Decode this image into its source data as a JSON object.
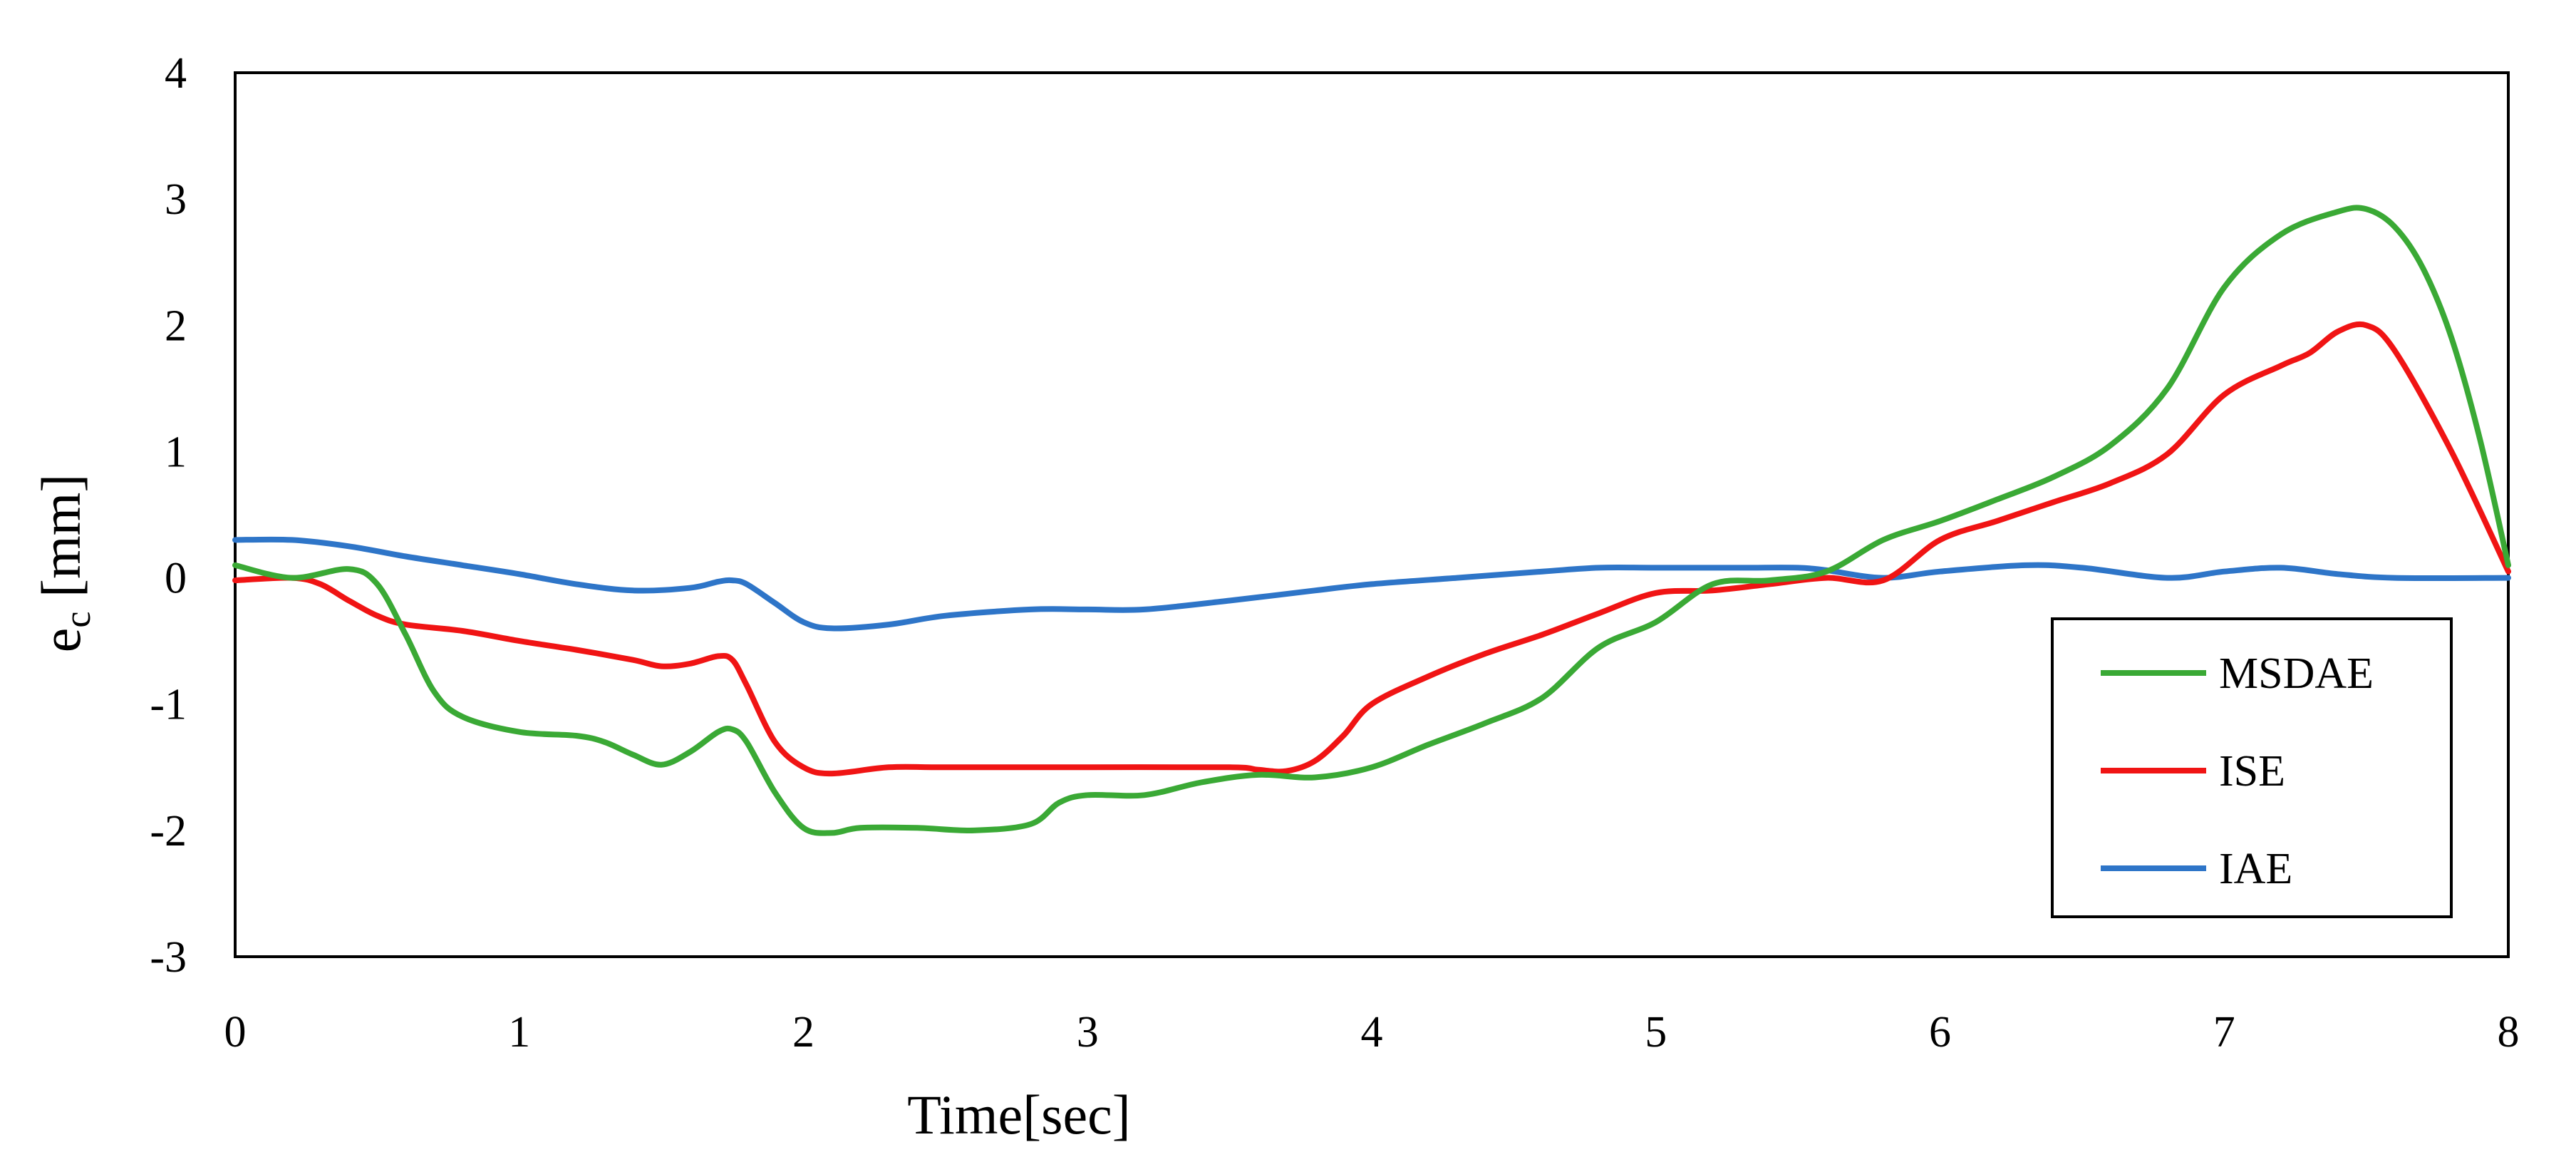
{
  "chart_data": {
    "type": "line",
    "xlabel": "Time[sec]",
    "ylabel_main": "e",
    "ylabel_sub": "c",
    "ylabel_unit": " [mm]",
    "xlim": [
      0,
      8
    ],
    "ylim": [
      -3,
      4
    ],
    "x_ticks": [
      "0",
      "1",
      "2",
      "3",
      "4",
      "5",
      "6",
      "7",
      "8"
    ],
    "y_ticks": [
      "4",
      "3",
      "2",
      "1",
      "0",
      "-1",
      "-2",
      "-3"
    ],
    "grid": false,
    "legend_position": "bottom-right",
    "series": [
      {
        "name": "MSDAE",
        "color": "#3aa935",
        "x": [
          0,
          0.2,
          0.4,
          0.5,
          0.6,
          0.7,
          0.8,
          1.0,
          1.2,
          1.3,
          1.4,
          1.5,
          1.6,
          1.7,
          1.75,
          1.8,
          1.9,
          2.0,
          2.1,
          2.2,
          2.4,
          2.6,
          2.8,
          2.9,
          3.0,
          3.2,
          3.4,
          3.6,
          3.8,
          4.0,
          4.2,
          4.4,
          4.6,
          4.8,
          5.0,
          5.2,
          5.4,
          5.6,
          5.8,
          6.0,
          6.2,
          6.4,
          6.6,
          6.8,
          7.0,
          7.2,
          7.4,
          7.5,
          7.6,
          7.7,
          7.8,
          7.9,
          8.0
        ],
        "y": [
          0.1,
          0.0,
          0.07,
          -0.05,
          -0.45,
          -0.9,
          -1.1,
          -1.22,
          -1.25,
          -1.3,
          -1.4,
          -1.48,
          -1.38,
          -1.22,
          -1.2,
          -1.3,
          -1.7,
          -1.98,
          -2.02,
          -1.98,
          -1.98,
          -2.0,
          -1.95,
          -1.78,
          -1.72,
          -1.72,
          -1.62,
          -1.56,
          -1.58,
          -1.5,
          -1.32,
          -1.15,
          -0.95,
          -0.55,
          -0.35,
          -0.05,
          -0.02,
          0.05,
          0.3,
          0.45,
          0.62,
          0.8,
          1.05,
          1.5,
          2.3,
          2.72,
          2.9,
          2.92,
          2.78,
          2.45,
          1.9,
          1.1,
          0.1
        ]
      },
      {
        "name": "ISE",
        "color": "#f01414",
        "x": [
          0,
          0.2,
          0.3,
          0.4,
          0.5,
          0.6,
          0.8,
          1.0,
          1.2,
          1.4,
          1.5,
          1.6,
          1.7,
          1.75,
          1.8,
          1.9,
          2.0,
          2.1,
          2.3,
          2.5,
          3.0,
          3.5,
          3.6,
          3.7,
          3.8,
          3.9,
          4.0,
          4.2,
          4.4,
          4.6,
          4.8,
          5.0,
          5.2,
          5.4,
          5.6,
          5.8,
          6.0,
          6.2,
          6.4,
          6.6,
          6.8,
          7.0,
          7.2,
          7.3,
          7.4,
          7.5,
          7.6,
          7.8,
          8.0
        ],
        "y": [
          -0.02,
          0.0,
          -0.05,
          -0.18,
          -0.3,
          -0.37,
          -0.42,
          -0.5,
          -0.57,
          -0.65,
          -0.7,
          -0.68,
          -0.62,
          -0.65,
          -0.85,
          -1.3,
          -1.5,
          -1.55,
          -1.5,
          -1.5,
          -1.5,
          -1.5,
          -1.52,
          -1.53,
          -1.45,
          -1.25,
          -1.0,
          -0.78,
          -0.6,
          -0.45,
          -0.28,
          -0.12,
          -0.1,
          -0.05,
          0.0,
          -0.02,
          0.3,
          0.45,
          0.6,
          0.75,
          0.98,
          1.45,
          1.68,
          1.78,
          1.95,
          2.0,
          1.8,
          1.0,
          0.05
        ]
      },
      {
        "name": "IAE",
        "color": "#2e75c8",
        "x": [
          0,
          0.2,
          0.4,
          0.6,
          0.8,
          1.0,
          1.2,
          1.4,
          1.6,
          1.7,
          1.75,
          1.8,
          1.9,
          2.0,
          2.1,
          2.3,
          2.5,
          2.8,
          3.0,
          3.2,
          3.5,
          3.8,
          4.0,
          4.3,
          4.6,
          4.8,
          5.0,
          5.3,
          5.5,
          5.6,
          5.8,
          6.0,
          6.3,
          6.5,
          6.8,
          7.0,
          7.2,
          7.4,
          7.6,
          8.0
        ],
        "y": [
          0.3,
          0.3,
          0.25,
          0.17,
          0.1,
          0.03,
          -0.05,
          -0.1,
          -0.08,
          -0.03,
          -0.02,
          -0.05,
          -0.2,
          -0.35,
          -0.4,
          -0.37,
          -0.3,
          -0.25,
          -0.25,
          -0.25,
          -0.18,
          -0.1,
          -0.05,
          0.0,
          0.05,
          0.08,
          0.08,
          0.08,
          0.08,
          0.06,
          0.0,
          0.05,
          0.1,
          0.08,
          0.0,
          0.05,
          0.08,
          0.03,
          0.0,
          0.0
        ]
      }
    ]
  }
}
